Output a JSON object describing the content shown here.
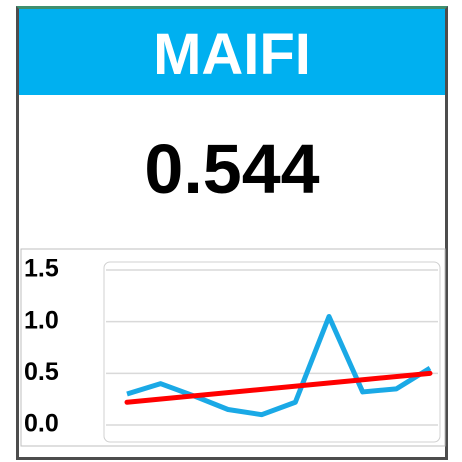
{
  "header": {
    "title": "MAIFI"
  },
  "kpi": {
    "value": 0.544
  },
  "chart_data": {
    "type": "line",
    "series": [
      {
        "color": "#1aa9e6",
        "values": [
          0.3,
          0.4,
          0.28,
          0.15,
          0.1,
          0.22,
          1.05,
          0.32,
          0.35,
          0.55
        ]
      }
    ],
    "trendline": {
      "color": "#ff0000",
      "values": [
        0.22,
        0.5
      ]
    },
    "ylim": [
      0,
      1.5
    ],
    "yticks": [
      {
        "value": 0,
        "label": "0.0"
      },
      0.5,
      {
        "value": 1,
        "label": "1.0"
      },
      1.5
    ],
    "grid": true
  }
}
